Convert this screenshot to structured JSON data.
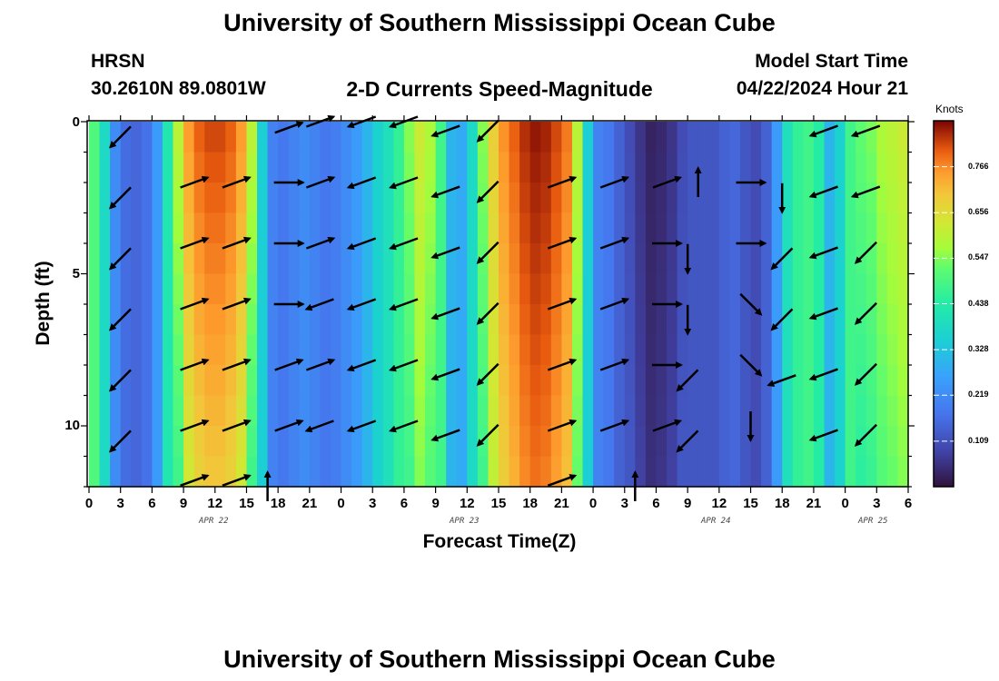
{
  "header": {
    "title_top": "University of Southern Mississippi Ocean Cube",
    "title_bottom": "University of Southern Mississippi Ocean Cube",
    "station": "HRSN",
    "coords": "30.2610N  89.0801W",
    "chart_title": "2-D Currents Speed-Magnitude",
    "model_label": "Model Start Time",
    "model_time": "04/22/2024 Hour 21"
  },
  "chart_data": {
    "type": "heatmap",
    "title": "2-D Currents Speed-Magnitude",
    "xlabel": "Forecast Time(Z)",
    "ylabel": "Depth (ft)",
    "x_tick_labels": [
      "0",
      "3",
      "6",
      "9",
      "12",
      "15",
      "18",
      "21",
      "0",
      "3",
      "6",
      "9",
      "12",
      "15",
      "18",
      "21",
      "0",
      "3",
      "6",
      "9",
      "12",
      "15",
      "18",
      "21",
      "0",
      "3",
      "6"
    ],
    "date_labels": [
      "APR 22",
      "APR 23",
      "APR 24",
      "APR 25"
    ],
    "x_range_hours": [
      0,
      78
    ],
    "y_ticks": [
      0,
      5,
      10
    ],
    "ylim": [
      0,
      12
    ],
    "colorbar": {
      "unit": "Knots",
      "range": [
        0,
        0.876
      ],
      "ticks": [
        "0.766",
        "0.656",
        "0.547",
        "0.438",
        "0.328",
        "0.219",
        "0.109"
      ]
    },
    "speed_profile": {
      "hours": [
        0,
        1,
        2,
        3,
        4,
        5,
        6,
        7,
        8,
        9,
        10,
        11,
        12,
        13,
        14,
        15,
        16,
        17,
        18,
        19,
        20,
        21,
        22,
        23,
        24,
        25,
        26,
        27,
        28,
        29,
        30,
        31,
        32,
        33,
        34,
        35,
        36,
        37,
        38,
        39,
        40,
        41,
        42,
        43,
        44,
        45,
        46,
        47,
        48,
        49,
        50,
        51,
        52,
        53,
        54,
        55,
        56,
        57,
        58,
        59,
        60,
        61,
        62,
        63,
        64,
        65,
        66,
        67,
        68,
        69,
        70,
        71,
        72,
        73,
        74,
        75,
        76,
        77
      ],
      "surface_knots": [
        0.5,
        0.38,
        0.22,
        0.16,
        0.15,
        0.17,
        0.25,
        0.42,
        0.6,
        0.75,
        0.8,
        0.82,
        0.82,
        0.8,
        0.75,
        0.6,
        0.35,
        0.2,
        0.18,
        0.2,
        0.22,
        0.2,
        0.18,
        0.19,
        0.22,
        0.25,
        0.3,
        0.36,
        0.4,
        0.46,
        0.55,
        0.62,
        0.58,
        0.48,
        0.3,
        0.28,
        0.38,
        0.55,
        0.68,
        0.76,
        0.8,
        0.84,
        0.86,
        0.85,
        0.82,
        0.78,
        0.6,
        0.35,
        0.2,
        0.18,
        0.14,
        0.1,
        0.06,
        0.03,
        0.04,
        0.06,
        0.1,
        0.12,
        0.12,
        0.12,
        0.14,
        0.15,
        0.12,
        0.1,
        0.14,
        0.25,
        0.4,
        0.46,
        0.48,
        0.44,
        0.3,
        0.36,
        0.48,
        0.52,
        0.54,
        0.58,
        0.6,
        0.62
      ]
    },
    "vectors": [
      {
        "t": 3,
        "d": 0.5,
        "dir": "SW"
      },
      {
        "t": 3,
        "d": 2.5,
        "dir": "SW"
      },
      {
        "t": 3,
        "d": 4.5,
        "dir": "SW"
      },
      {
        "t": 3,
        "d": 6.5,
        "dir": "SW"
      },
      {
        "t": 3,
        "d": 8.5,
        "dir": "SW"
      },
      {
        "t": 3,
        "d": 10.5,
        "dir": "SW"
      },
      {
        "t": 10,
        "d": 2,
        "dir": "ENE"
      },
      {
        "t": 10,
        "d": 4,
        "dir": "ENE"
      },
      {
        "t": 10,
        "d": 6,
        "dir": "ENE"
      },
      {
        "t": 10,
        "d": 8,
        "dir": "ENE"
      },
      {
        "t": 10,
        "d": 10,
        "dir": "ENE"
      },
      {
        "t": 10,
        "d": 11.8,
        "dir": "ENE"
      },
      {
        "t": 14,
        "d": 2,
        "dir": "ENE"
      },
      {
        "t": 14,
        "d": 4,
        "dir": "ENE"
      },
      {
        "t": 14,
        "d": 6,
        "dir": "ENE"
      },
      {
        "t": 14,
        "d": 8,
        "dir": "ENE"
      },
      {
        "t": 14,
        "d": 10,
        "dir": "ENE"
      },
      {
        "t": 14,
        "d": 11.8,
        "dir": "ENE"
      },
      {
        "t": 19,
        "d": 0.2,
        "dir": "ENE"
      },
      {
        "t": 19,
        "d": 2,
        "dir": "E"
      },
      {
        "t": 19,
        "d": 4,
        "dir": "E"
      },
      {
        "t": 19,
        "d": 6,
        "dir": "E"
      },
      {
        "t": 19,
        "d": 8,
        "dir": "ENE"
      },
      {
        "t": 19,
        "d": 10,
        "dir": "ENE"
      },
      {
        "t": 17,
        "d": 12,
        "dir": "N"
      },
      {
        "t": 22,
        "d": 0,
        "dir": "ENE"
      },
      {
        "t": 22,
        "d": 2,
        "dir": "ENE"
      },
      {
        "t": 22,
        "d": 4,
        "dir": "ENE"
      },
      {
        "t": 22,
        "d": 6,
        "dir": "WSW"
      },
      {
        "t": 22,
        "d": 8,
        "dir": "ENE"
      },
      {
        "t": 22,
        "d": 10,
        "dir": "WSW"
      },
      {
        "t": 26,
        "d": 0,
        "dir": "WSW"
      },
      {
        "t": 26,
        "d": 2,
        "dir": "WSW"
      },
      {
        "t": 26,
        "d": 4,
        "dir": "WSW"
      },
      {
        "t": 26,
        "d": 6,
        "dir": "WSW"
      },
      {
        "t": 26,
        "d": 8,
        "dir": "WSW"
      },
      {
        "t": 26,
        "d": 10,
        "dir": "WSW"
      },
      {
        "t": 30,
        "d": 0,
        "dir": "WSW"
      },
      {
        "t": 30,
        "d": 2,
        "dir": "WSW"
      },
      {
        "t": 30,
        "d": 4,
        "dir": "WSW"
      },
      {
        "t": 30,
        "d": 6,
        "dir": "WSW"
      },
      {
        "t": 30,
        "d": 8,
        "dir": "WSW"
      },
      {
        "t": 30,
        "d": 10,
        "dir": "WSW"
      },
      {
        "t": 34,
        "d": 0.3,
        "dir": "WSW"
      },
      {
        "t": 34,
        "d": 2.3,
        "dir": "WSW"
      },
      {
        "t": 34,
        "d": 4.3,
        "dir": "WSW"
      },
      {
        "t": 34,
        "d": 6.3,
        "dir": "WSW"
      },
      {
        "t": 34,
        "d": 8.3,
        "dir": "WSW"
      },
      {
        "t": 34,
        "d": 10.3,
        "dir": "WSW"
      },
      {
        "t": 38,
        "d": 0.3,
        "dir": "SW"
      },
      {
        "t": 38,
        "d": 2.3,
        "dir": "SW"
      },
      {
        "t": 38,
        "d": 4.3,
        "dir": "SW"
      },
      {
        "t": 38,
        "d": 6.3,
        "dir": "SW"
      },
      {
        "t": 38,
        "d": 8.3,
        "dir": "SW"
      },
      {
        "t": 38,
        "d": 10.3,
        "dir": "SW"
      },
      {
        "t": 45,
        "d": 2,
        "dir": "ENE"
      },
      {
        "t": 45,
        "d": 4,
        "dir": "ENE"
      },
      {
        "t": 45,
        "d": 6,
        "dir": "ENE"
      },
      {
        "t": 45,
        "d": 8,
        "dir": "ENE"
      },
      {
        "t": 45,
        "d": 10,
        "dir": "ENE"
      },
      {
        "t": 45,
        "d": 11.8,
        "dir": "ENE"
      },
      {
        "t": 50,
        "d": 2,
        "dir": "ENE"
      },
      {
        "t": 50,
        "d": 4,
        "dir": "ENE"
      },
      {
        "t": 50,
        "d": 6,
        "dir": "ENE"
      },
      {
        "t": 50,
        "d": 8,
        "dir": "ENE"
      },
      {
        "t": 50,
        "d": 10,
        "dir": "ENE"
      },
      {
        "t": 55,
        "d": 2,
        "dir": "ENE"
      },
      {
        "t": 55,
        "d": 4,
        "dir": "E"
      },
      {
        "t": 55,
        "d": 6,
        "dir": "E"
      },
      {
        "t": 55,
        "d": 8,
        "dir": "E"
      },
      {
        "t": 55,
        "d": 10,
        "dir": "ENE"
      },
      {
        "t": 52,
        "d": 12,
        "dir": "N"
      },
      {
        "t": 58,
        "d": 2,
        "dir": "N"
      },
      {
        "t": 57,
        "d": 4.5,
        "dir": "S"
      },
      {
        "t": 57,
        "d": 6.5,
        "dir": "S"
      },
      {
        "t": 57,
        "d": 8.5,
        "dir": "SW"
      },
      {
        "t": 57,
        "d": 10.5,
        "dir": "SW"
      },
      {
        "t": 63,
        "d": 2,
        "dir": "E"
      },
      {
        "t": 63,
        "d": 4,
        "dir": "E"
      },
      {
        "t": 63,
        "d": 6,
        "dir": "SE"
      },
      {
        "t": 63,
        "d": 8,
        "dir": "SE"
      },
      {
        "t": 63,
        "d": 10,
        "dir": "S"
      },
      {
        "t": 66,
        "d": 2.5,
        "dir": "S"
      },
      {
        "t": 66,
        "d": 4.5,
        "dir": "SW"
      },
      {
        "t": 66,
        "d": 6.5,
        "dir": "SW"
      },
      {
        "t": 66,
        "d": 8.5,
        "dir": "WSW"
      },
      {
        "t": 70,
        "d": 0.3,
        "dir": "WSW"
      },
      {
        "t": 70,
        "d": 2.3,
        "dir": "WSW"
      },
      {
        "t": 70,
        "d": 4.3,
        "dir": "WSW"
      },
      {
        "t": 70,
        "d": 6.3,
        "dir": "WSW"
      },
      {
        "t": 70,
        "d": 8.3,
        "dir": "WSW"
      },
      {
        "t": 70,
        "d": 10.3,
        "dir": "WSW"
      },
      {
        "t": 74,
        "d": 0.3,
        "dir": "WSW"
      },
      {
        "t": 74,
        "d": 2.3,
        "dir": "WSW"
      },
      {
        "t": 74,
        "d": 4.3,
        "dir": "SW"
      },
      {
        "t": 74,
        "d": 6.3,
        "dir": "SW"
      },
      {
        "t": 74,
        "d": 8.3,
        "dir": "SW"
      },
      {
        "t": 74,
        "d": 10.3,
        "dir": "SW"
      }
    ]
  }
}
